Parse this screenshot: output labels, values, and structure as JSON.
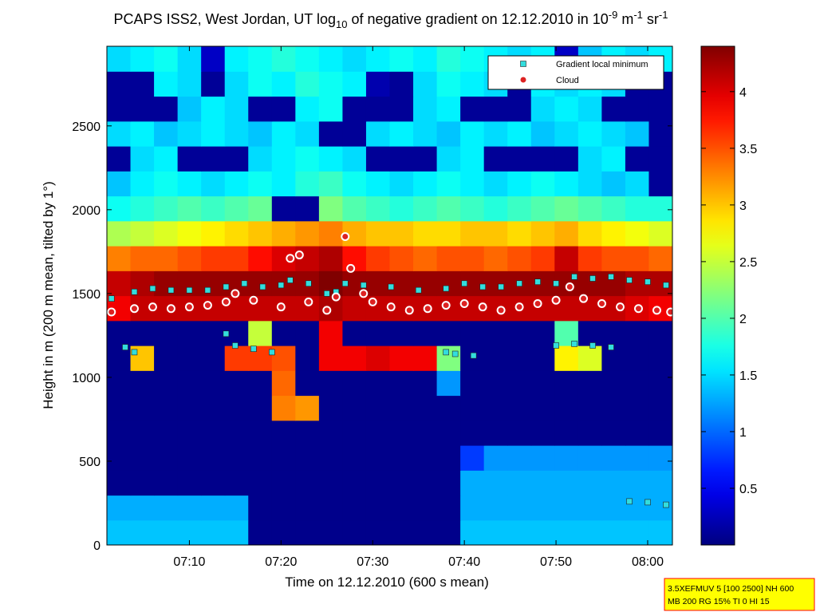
{
  "chart_data": {
    "type": "heatmap",
    "title_parts": [
      "PCAPS ISS2, West Jordan, UT log",
      "10",
      " of negative gradient on 12.12.2010 in 10",
      "-9",
      " m",
      "-1",
      " sr",
      "-1"
    ],
    "xlabel": "Time on 12.12.2010 (600 s mean)",
    "ylabel": "Height in m (200 m mean, tilted by 1°)",
    "xlim": [
      421,
      482.7
    ],
    "xticks": [
      {
        "value": 430,
        "label": "07:10"
      },
      {
        "value": 440,
        "label": "07:20"
      },
      {
        "value": 450,
        "label": "07:30"
      },
      {
        "value": 460,
        "label": "07:40"
      },
      {
        "value": 470,
        "label": "07:50"
      },
      {
        "value": 480,
        "label": "08:00"
      }
    ],
    "ylim": [
      0,
      2975
    ],
    "yticks": [
      0,
      500,
      1000,
      1500,
      2000,
      2500
    ],
    "colormap": "jet",
    "clim": [
      0,
      4.4
    ],
    "colorbar_ticks": [
      0.5,
      1,
      1.5,
      2,
      2.5,
      3,
      3.5,
      4
    ],
    "z": [
      [
        1.4,
        1.4,
        1.4,
        1.4,
        1.4,
        1.4,
        0.05,
        0.05,
        0.05,
        0.05,
        0.05,
        0.05,
        0.05,
        0.05,
        0.05,
        1.4,
        1.4,
        1.4,
        1.4,
        1.4,
        1.4,
        1.4,
        1.4,
        1.4
      ],
      [
        1.3,
        1.3,
        1.3,
        1.3,
        1.3,
        1.3,
        0.05,
        0.05,
        0.05,
        0.05,
        0.05,
        0.05,
        0.05,
        0.05,
        0.05,
        1.3,
        1.3,
        1.3,
        1.3,
        1.3,
        1.3,
        1.3,
        1.3,
        1.3
      ],
      [
        0.05,
        0.05,
        0.05,
        0.05,
        0.05,
        0.05,
        0.05,
        0.05,
        0.05,
        0.05,
        0.05,
        0.05,
        0.05,
        0.05,
        0.05,
        1.3,
        1.3,
        1.3,
        1.3,
        1.3,
        1.3,
        1.3,
        1.3,
        1.3
      ],
      [
        0.05,
        0.05,
        0.05,
        0.05,
        0.05,
        0.05,
        0.05,
        0.05,
        0.05,
        0.05,
        0.05,
        0.05,
        0.05,
        0.05,
        0.05,
        0.8,
        1.2,
        1.2,
        1.2,
        1.2,
        1.2,
        1.2,
        1.2,
        1.2
      ],
      [
        0.05,
        0.05,
        0.05,
        0.05,
        0.05,
        0.05,
        0.05,
        0.05,
        0.05,
        0.05,
        0.05,
        0.05,
        0.05,
        0.05,
        0.05,
        0.05,
        0.05,
        0.05,
        0.05,
        0.05,
        0.05,
        0.05,
        0.05,
        0.05
      ],
      [
        0.05,
        0.05,
        0.05,
        0.05,
        0.05,
        0.05,
        0.05,
        3.3,
        3.2,
        0.05,
        0.05,
        0.05,
        0.05,
        0.05,
        0.05,
        0.05,
        0.05,
        0.05,
        0.05,
        0.05,
        0.05,
        0.05,
        0.05,
        0.05
      ],
      [
        0.05,
        0.05,
        0.05,
        0.05,
        0.05,
        0.05,
        0.05,
        3.4,
        0.05,
        0.05,
        0.05,
        0.05,
        0.05,
        0.05,
        1.2,
        0.05,
        0.05,
        0.05,
        0.05,
        0.05,
        0.05,
        0.05,
        0.05,
        0.05
      ],
      [
        0.05,
        3.0,
        0.05,
        0.05,
        0.05,
        3.6,
        3.6,
        3.5,
        0.05,
        3.9,
        3.9,
        4.0,
        3.9,
        3.9,
        2.2,
        0.05,
        0.05,
        0.05,
        0.05,
        2.8,
        2.6,
        0.05,
        0.05,
        0.05
      ],
      [
        0.05,
        0.05,
        0.05,
        0.05,
        0.05,
        0.05,
        2.5,
        0.05,
        0.05,
        3.9,
        0.05,
        0.05,
        0.05,
        0.05,
        0.05,
        0.05,
        0.05,
        0.05,
        0.05,
        2.0,
        0.05,
        0.05,
        0.05,
        0.05
      ],
      [
        3.9,
        4.1,
        4.1,
        4.1,
        4.1,
        4.1,
        4.1,
        4.1,
        4.1,
        4.2,
        4.1,
        4.1,
        4.1,
        4.1,
        4.1,
        4.1,
        4.1,
        4.1,
        4.1,
        4.1,
        4.1,
        4.1,
        4.0,
        3.9
      ],
      [
        4.1,
        4.2,
        4.3,
        4.3,
        4.3,
        4.3,
        4.3,
        4.3,
        4.3,
        4.4,
        4.3,
        4.3,
        4.3,
        4.3,
        4.3,
        4.3,
        4.3,
        4.3,
        4.3,
        4.3,
        4.3,
        4.3,
        4.2,
        4.2
      ],
      [
        3.3,
        3.4,
        3.4,
        3.5,
        3.6,
        3.6,
        3.8,
        4.0,
        4.1,
        4.2,
        3.8,
        3.6,
        3.5,
        3.4,
        3.5,
        3.5,
        3.4,
        3.5,
        3.6,
        4.1,
        3.6,
        3.5,
        3.5,
        3.4
      ],
      [
        2.4,
        2.5,
        2.6,
        2.7,
        2.8,
        2.9,
        3.0,
        3.1,
        3.2,
        3.3,
        3.1,
        3.0,
        3.0,
        2.9,
        2.9,
        3.0,
        3.0,
        2.9,
        3.0,
        3.1,
        2.9,
        2.8,
        2.7,
        2.6
      ],
      [
        1.7,
        1.8,
        1.9,
        2.0,
        1.9,
        2.0,
        2.1,
        0.1,
        0.1,
        2.2,
        2.0,
        1.9,
        1.8,
        1.9,
        2.0,
        1.9,
        1.8,
        1.9,
        2.0,
        2.1,
        2.0,
        1.9,
        1.8,
        1.8
      ],
      [
        1.4,
        1.6,
        1.7,
        1.6,
        1.5,
        1.6,
        1.7,
        1.6,
        1.8,
        1.9,
        1.7,
        1.6,
        1.5,
        1.6,
        1.7,
        1.6,
        1.5,
        1.6,
        1.7,
        1.6,
        1.5,
        1.4,
        1.5,
        0.1
      ],
      [
        0.1,
        1.5,
        1.6,
        0.1,
        0.1,
        0.1,
        1.5,
        1.6,
        1.7,
        1.6,
        1.5,
        0.1,
        0.1,
        0.1,
        1.5,
        1.6,
        0.1,
        0.1,
        0.1,
        0.1,
        1.5,
        1.6,
        0.1,
        0.1
      ],
      [
        1.5,
        1.6,
        1.4,
        1.5,
        1.6,
        1.5,
        1.4,
        1.6,
        1.5,
        0.1,
        0.1,
        1.5,
        1.6,
        1.5,
        1.4,
        1.6,
        1.5,
        1.6,
        1.4,
        1.5,
        1.6,
        1.5,
        1.4,
        0.1
      ],
      [
        0.1,
        0.1,
        0.1,
        1.4,
        1.6,
        1.5,
        0.1,
        0.1,
        1.6,
        1.7,
        0.1,
        0.1,
        0.1,
        1.5,
        1.6,
        0.1,
        0.1,
        0.1,
        1.5,
        1.6,
        1.5,
        0.1,
        0.1,
        0.1
      ],
      [
        0.1,
        0.1,
        1.6,
        1.5,
        0.1,
        1.5,
        1.7,
        1.6,
        1.8,
        1.7,
        1.6,
        0.2,
        0.1,
        1.5,
        1.7,
        1.6,
        1.5,
        0.1,
        1.6,
        1.5,
        1.6,
        1.5,
        0.1,
        0.1
      ],
      [
        1.5,
        1.6,
        1.7,
        1.5,
        0.3,
        1.6,
        1.7,
        1.8,
        1.7,
        1.6,
        1.5,
        1.6,
        1.7,
        1.6,
        1.8,
        1.7,
        1.6,
        1.5,
        1.6,
        0.3,
        1.4,
        1.6,
        1.5,
        1.6
      ]
    ],
    "series": [
      {
        "name": "Gradient local minimum",
        "color": "#33dddd",
        "marker": "square",
        "x": [
          421.5,
          424,
          426,
          428,
          430,
          432,
          434,
          436,
          438,
          440,
          441,
          443,
          445,
          446,
          447,
          449,
          452,
          455,
          458,
          460,
          462,
          464,
          466,
          468,
          470,
          472,
          474,
          476,
          478,
          480,
          482,
          423,
          424,
          434,
          435,
          437,
          439,
          458,
          459,
          461,
          470,
          472,
          474,
          476,
          478,
          480,
          482
        ],
        "y": [
          1470,
          1510,
          1530,
          1520,
          1520,
          1520,
          1540,
          1560,
          1540,
          1550,
          1580,
          1560,
          1500,
          1510,
          1560,
          1550,
          1540,
          1520,
          1530,
          1560,
          1540,
          1540,
          1560,
          1570,
          1560,
          1600,
          1590,
          1600,
          1580,
          1570,
          1550,
          1180,
          1150,
          1260,
          1190,
          1170,
          1150,
          1150,
          1140,
          1130,
          1190,
          1200,
          1190,
          1180,
          260,
          255,
          240
        ]
      },
      {
        "name": "Cloud",
        "color": "#dd2222",
        "marker": "circle",
        "x": [
          421.5,
          424,
          426,
          428,
          430,
          432,
          434,
          435,
          437,
          440,
          441,
          442,
          443,
          445,
          446,
          447,
          447.6,
          449,
          450,
          452,
          454,
          456,
          458,
          460,
          462,
          464,
          466,
          468,
          470,
          471.5,
          473,
          475,
          477,
          479,
          481,
          482.5
        ],
        "y": [
          1390,
          1410,
          1420,
          1410,
          1420,
          1430,
          1450,
          1500,
          1460,
          1420,
          1710,
          1730,
          1450,
          1400,
          1480,
          1840,
          1650,
          1500,
          1450,
          1420,
          1400,
          1410,
          1430,
          1440,
          1420,
          1400,
          1420,
          1440,
          1460,
          1540,
          1470,
          1440,
          1420,
          1410,
          1400,
          1390
        ]
      }
    ],
    "legend": "upper right",
    "annotation": [
      "3.5XEFMUV 5 [100 2500] NH 600",
      "MB 200 RG 15% TI 0 HI 15"
    ]
  }
}
